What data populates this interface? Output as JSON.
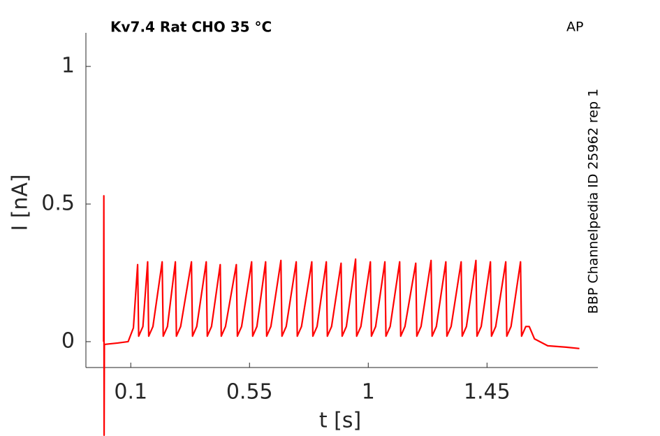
{
  "chart_data": {
    "type": "line",
    "title": "Kv7.4  Rat  CHO  35 °C",
    "annotation": "AP",
    "side_text": "BBP Channelpedia ID 25962 rep 1",
    "x_label": "t [s]",
    "y_label": "I [nA]",
    "xlim": [
      -0.07,
      1.87
    ],
    "ylim": [
      -0.094,
      1.122
    ],
    "xticks": [
      0.1,
      0.55,
      1,
      1.45
    ],
    "yticks": [
      0,
      0.5,
      1
    ],
    "series": [
      {
        "color": "#ff0000",
        "x": [
          -0.003,
          -0.002,
          -0.001,
          0,
          0.05,
          0.09,
          0.11,
          0.126,
          0.13,
          0.146,
          0.164,
          0.168,
          0.184,
          0.219,
          0.223,
          0.239,
          0.269,
          0.273,
          0.289,
          0.33,
          0.334,
          0.35,
          0.386,
          0.39,
          0.406,
          0.439,
          0.443,
          0.459,
          0.5,
          0.504,
          0.52,
          0.558,
          0.562,
          0.578,
          0.611,
          0.615,
          0.631,
          0.669,
          0.673,
          0.689,
          0.727,
          0.731,
          0.747,
          0.786,
          0.79,
          0.806,
          0.841,
          0.845,
          0.861,
          0.897,
          0.901,
          0.917,
          0.952,
          0.956,
          0.972,
          1.008,
          1.012,
          1.028,
          1.063,
          1.067,
          1.083,
          1.119,
          1.123,
          1.139,
          1.18,
          1.184,
          1.2,
          1.238,
          1.242,
          1.258,
          1.294,
          1.298,
          1.314,
          1.352,
          1.356,
          1.372,
          1.408,
          1.412,
          1.428,
          1.463,
          1.467,
          1.483,
          1.521,
          1.525,
          1.541,
          1.577,
          1.581,
          1.597,
          1.61,
          1.63,
          1.68,
          1.75,
          1.8
        ],
        "values": [
          0,
          0.53,
          -0.34,
          -0.01,
          -0.005,
          0,
          0.05,
          0.28,
          0.02,
          0.055,
          0.29,
          0.02,
          0.055,
          0.29,
          0.02,
          0.055,
          0.29,
          0.02,
          0.055,
          0.29,
          0.02,
          0.055,
          0.29,
          0.02,
          0.055,
          0.28,
          0.02,
          0.055,
          0.28,
          0.02,
          0.055,
          0.29,
          0.02,
          0.055,
          0.29,
          0.02,
          0.055,
          0.295,
          0.02,
          0.055,
          0.29,
          0.02,
          0.055,
          0.29,
          0.02,
          0.055,
          0.29,
          0.02,
          0.055,
          0.285,
          0.02,
          0.055,
          0.3,
          0.02,
          0.055,
          0.29,
          0.02,
          0.055,
          0.29,
          0.02,
          0.055,
          0.29,
          0.02,
          0.055,
          0.285,
          0.02,
          0.055,
          0.295,
          0.02,
          0.055,
          0.29,
          0.02,
          0.055,
          0.29,
          0.02,
          0.055,
          0.295,
          0.02,
          0.055,
          0.29,
          0.02,
          0.055,
          0.29,
          0.02,
          0.055,
          0.29,
          0.02,
          0.055,
          0.055,
          0.01,
          -0.015,
          -0.02,
          -0.025
        ]
      }
    ]
  }
}
